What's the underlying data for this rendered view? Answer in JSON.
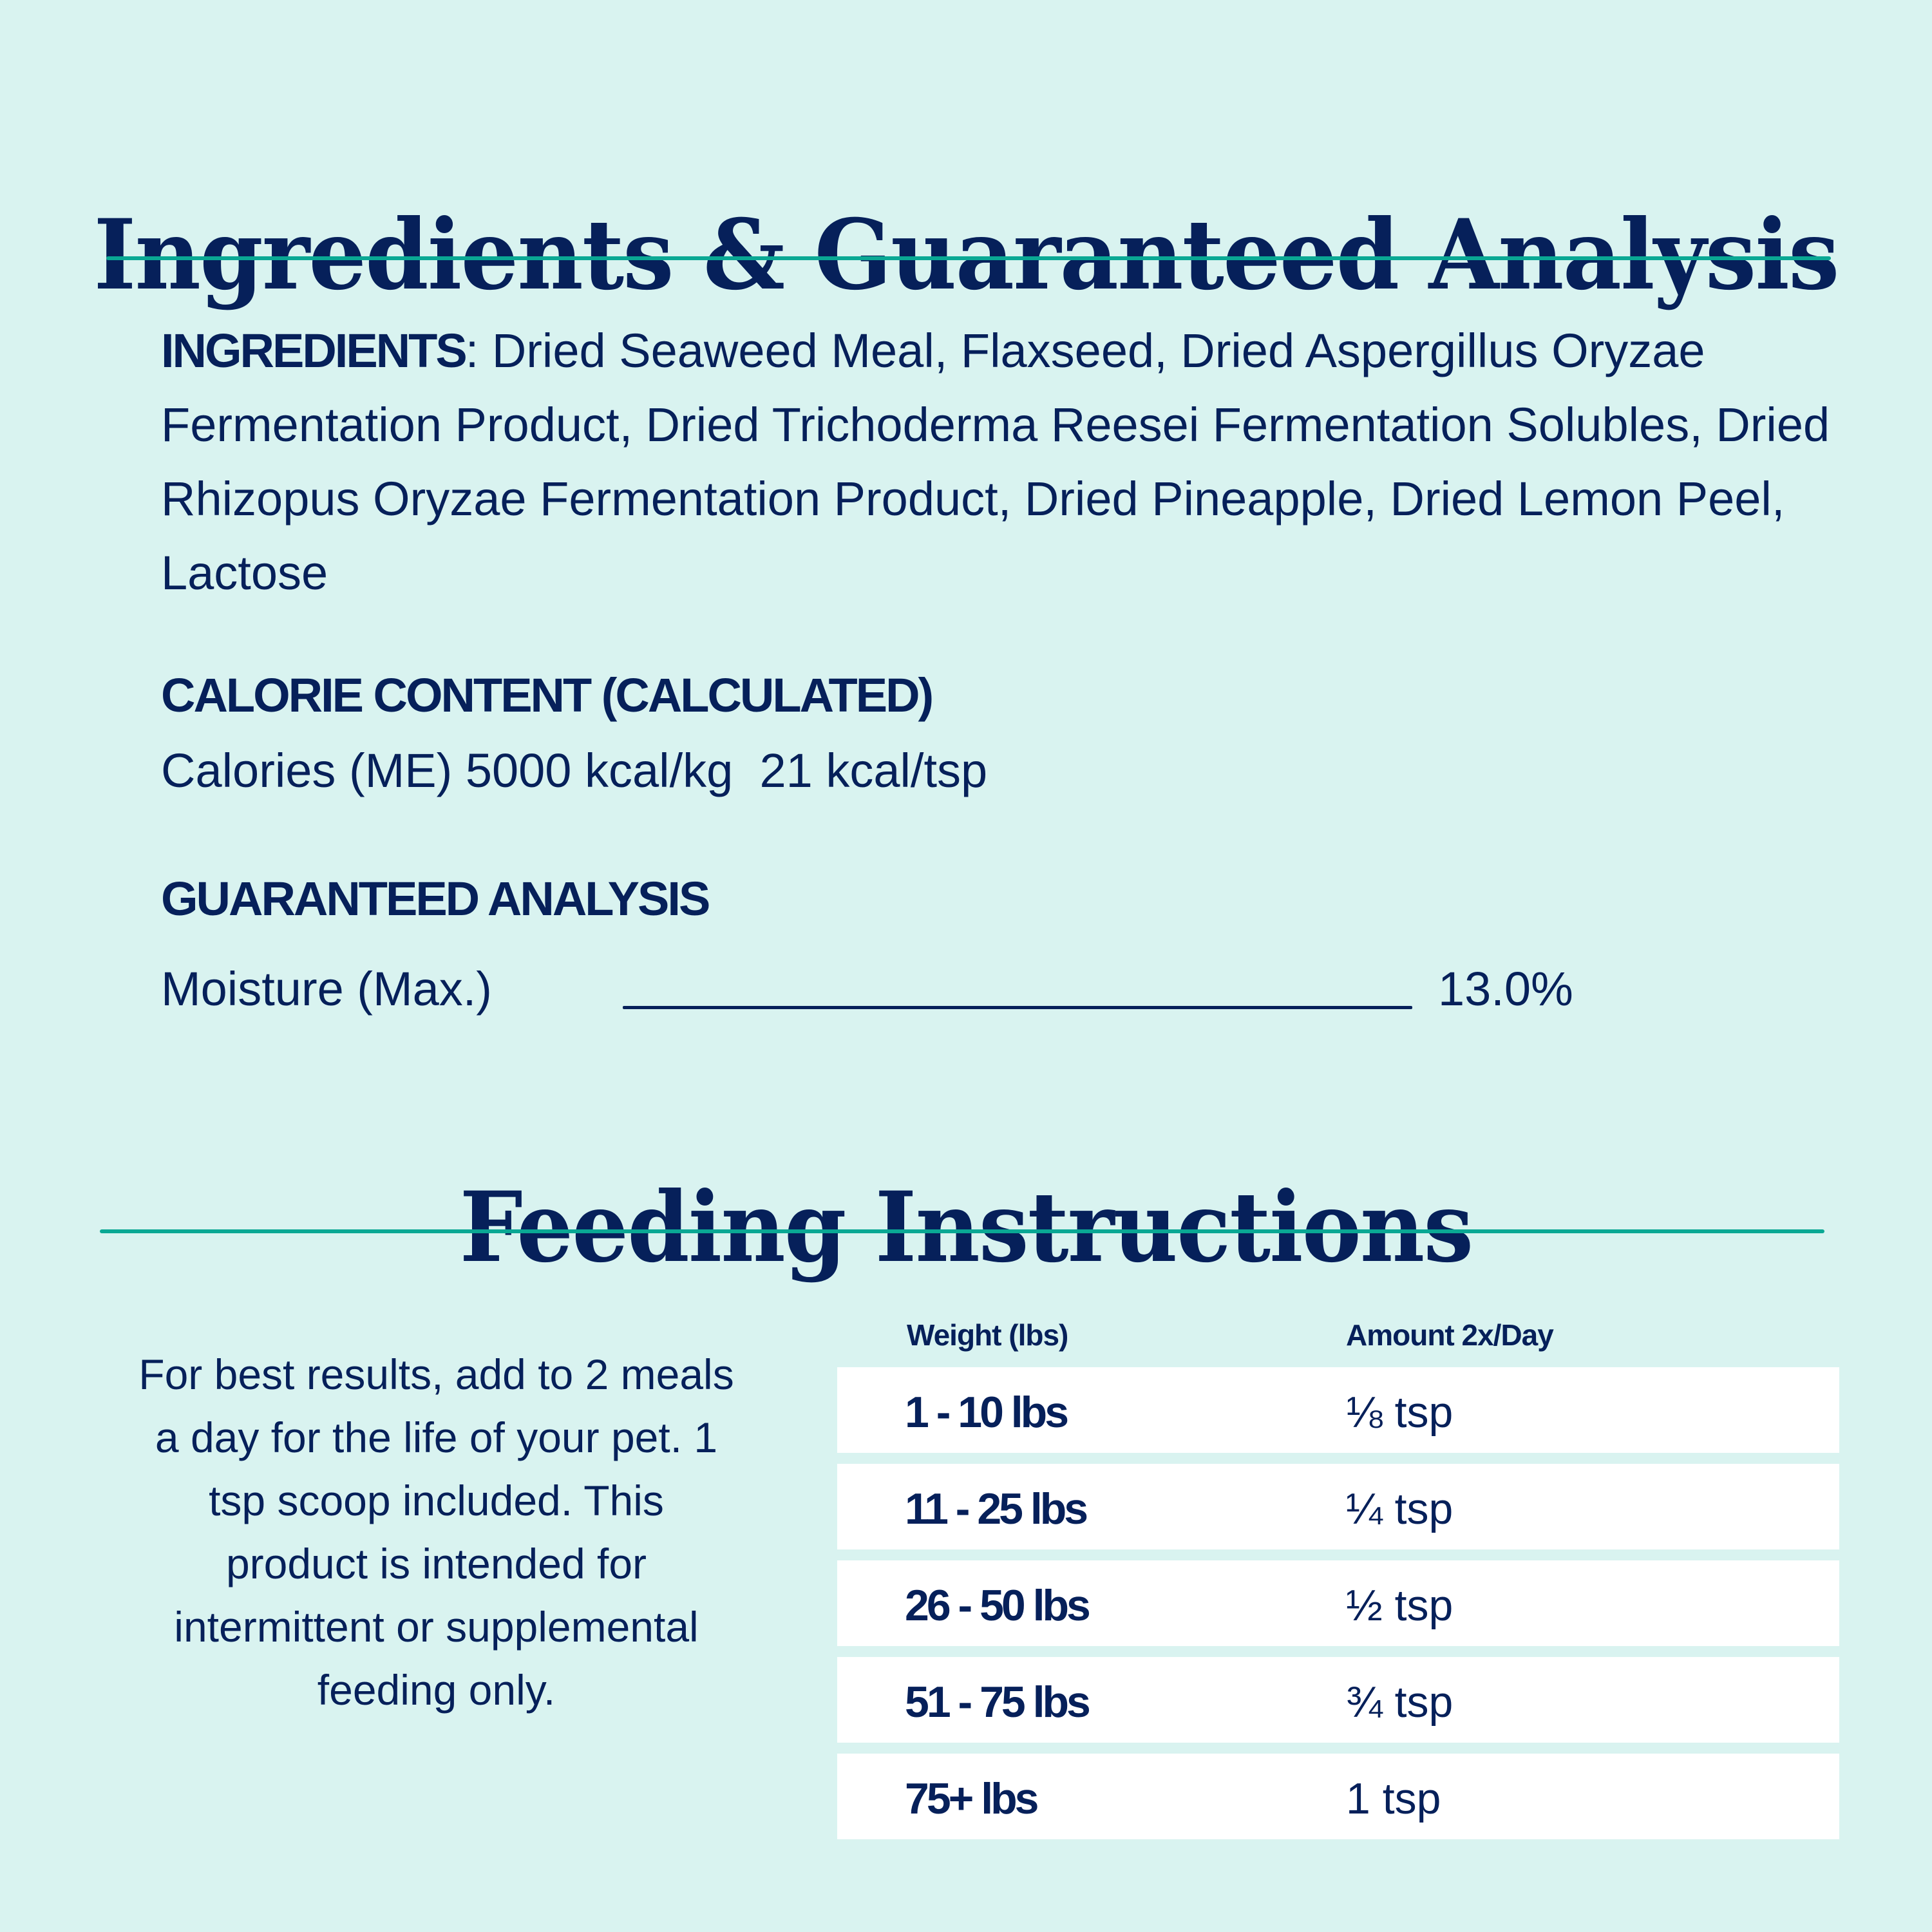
{
  "colors": {
    "background": "#d9f3f0",
    "text": "#06205a",
    "accent_rule": "#0aa894",
    "table_row_bg": "#ffffff"
  },
  "ingredients_section": {
    "title": "Ingredients & Guaranteed Analysis",
    "ingredients_label": "INGREDIENTS",
    "ingredients_separator": ": ",
    "ingredients_text": "Dried Seaweed Meal, Flaxseed, Dried Aspergillus Oryzae Fermentation Product, Dried Trichoderma Reesei Fermentation Solubles, Dried Rhizopus Oryzae Fermentation Product, Dried Pineapple, Dried Lemon Peel, Lactose",
    "calorie_heading": "CALORIE CONTENT (CALCULATED)",
    "calorie_line": "Calories (ME) 5000 kcal/kg  21 kcal/tsp",
    "guaranteed_analysis_heading": "GUARANTEED ANALYSIS",
    "analysis": [
      {
        "label": "Moisture (Max.)",
        "value": "13.0%"
      }
    ]
  },
  "feeding_section": {
    "title": "Feeding Instructions",
    "note": "For best results, add to 2 meals a day for the life of your pet. 1 tsp scoop included. This product is intended for intermittent or supplemental feeding only.",
    "table": {
      "headers": {
        "weight": "Weight (lbs)",
        "amount": "Amount 2x/Day"
      },
      "rows": [
        {
          "weight": "1 - 10 lbs",
          "amount": "⅛ tsp"
        },
        {
          "weight": "11 - 25 lbs",
          "amount": "¼ tsp"
        },
        {
          "weight": "26 - 50 lbs",
          "amount": "½ tsp"
        },
        {
          "weight": "51 - 75 lbs",
          "amount": "¾ tsp"
        },
        {
          "weight": "75+ lbs",
          "amount": "1 tsp"
        }
      ]
    }
  }
}
